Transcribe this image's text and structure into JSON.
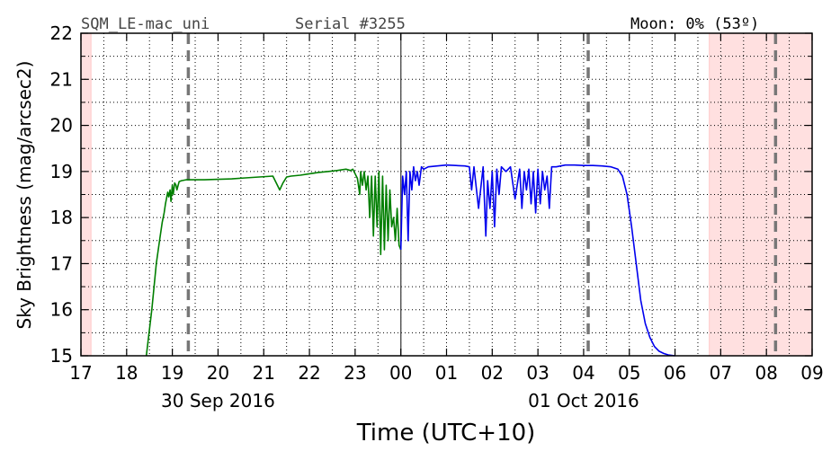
{
  "header": {
    "device": "SQM_LE-mac_uni",
    "serial": "Serial #3255",
    "moon": "Moon: 0% (53º)"
  },
  "chart_data": {
    "type": "line",
    "xlabel": "Time (UTC+10)",
    "ylabel": "Sky Brightness (mag/arcsec2)",
    "xlim": [
      17,
      33
    ],
    "ylim": [
      15,
      22
    ],
    "x_tick_values": [
      17,
      18,
      19,
      20,
      21,
      22,
      23,
      24,
      25,
      26,
      27,
      28,
      29,
      30,
      31,
      32,
      33
    ],
    "x_tick_labels": [
      "17",
      "18",
      "19",
      "20",
      "21",
      "22",
      "23",
      "00",
      "01",
      "02",
      "03",
      "04",
      "05",
      "06",
      "07",
      "08",
      "09"
    ],
    "y_tick_values": [
      15,
      16,
      17,
      18,
      19,
      20,
      21,
      22
    ],
    "y_tick_labels": [
      "15",
      "16",
      "17",
      "18",
      "19",
      "20",
      "21",
      "22"
    ],
    "date_labels": [
      {
        "x": 20,
        "text": "30 Sep 2016"
      },
      {
        "x": 28,
        "text": "01 Oct 2016"
      }
    ],
    "grid": true,
    "midnight_line": 24,
    "dashed_lines": [
      19.35,
      28.1,
      32.2
    ],
    "shaded_regions": [
      {
        "x0": 17,
        "x1": 17.22,
        "color": "#ffe0e0"
      },
      {
        "x0": 30.75,
        "x1": 33,
        "color": "#ffe0e0"
      }
    ],
    "series": [
      {
        "color": "#007f00",
        "x": [
          18.43,
          18.55,
          18.65,
          18.72,
          18.78,
          18.82,
          18.85,
          18.87,
          18.9,
          18.92,
          18.95,
          18.97,
          19.0,
          19.02,
          19.05,
          19.08,
          19.1,
          19.15,
          19.2,
          19.3,
          19.5,
          19.7,
          20.0,
          20.3,
          20.6,
          20.9,
          21.2,
          21.35,
          21.42,
          21.5,
          21.6,
          21.8,
          22.0,
          22.2,
          22.4,
          22.6,
          22.8,
          22.9,
          22.95,
          23.05,
          23.1,
          23.12,
          23.16,
          23.2,
          23.24,
          23.28,
          23.32,
          23.36,
          23.4,
          23.44,
          23.48,
          23.52,
          23.56,
          23.6,
          23.64,
          23.68,
          23.72,
          23.76,
          23.8,
          23.84,
          23.88,
          23.92,
          23.96,
          24.0
        ],
        "y": [
          15.0,
          16.0,
          17.0,
          17.5,
          17.9,
          18.1,
          18.3,
          18.4,
          18.55,
          18.45,
          18.6,
          18.35,
          18.7,
          18.5,
          18.75,
          18.7,
          18.6,
          18.78,
          18.8,
          18.82,
          18.82,
          18.82,
          18.83,
          18.84,
          18.86,
          18.88,
          18.9,
          18.6,
          18.75,
          18.88,
          18.9,
          18.92,
          18.95,
          18.98,
          19.0,
          19.02,
          19.05,
          19.02,
          19.05,
          18.85,
          18.5,
          19.0,
          18.7,
          19.0,
          18.6,
          18.9,
          18.0,
          18.9,
          17.6,
          18.9,
          17.8,
          19.0,
          17.2,
          18.9,
          17.3,
          18.7,
          17.5,
          18.6,
          17.8,
          18.0,
          17.5,
          18.2,
          17.4,
          17.3
        ]
      },
      {
        "color": "#0000ee",
        "x": [
          24.0,
          24.04,
          24.08,
          24.12,
          24.16,
          24.2,
          24.24,
          24.28,
          24.32,
          24.36,
          24.4,
          24.45,
          24.5,
          24.6,
          24.8,
          25.0,
          25.2,
          25.4,
          25.5,
          25.55,
          25.6,
          25.7,
          25.8,
          25.86,
          25.9,
          25.95,
          26.0,
          26.05,
          26.1,
          26.15,
          26.2,
          26.3,
          26.4,
          26.5,
          26.6,
          26.65,
          26.7,
          26.75,
          26.8,
          26.85,
          26.9,
          26.95,
          27.0,
          27.05,
          27.1,
          27.15,
          27.2,
          27.25,
          27.3,
          27.4,
          27.6,
          27.8,
          28.0,
          28.2,
          28.4,
          28.6,
          28.75,
          28.85,
          28.95,
          29.05,
          29.15,
          29.25,
          29.35,
          29.45,
          29.55,
          29.65,
          29.75,
          29.85,
          30.0
        ],
        "y": [
          17.3,
          18.9,
          18.5,
          19.0,
          17.5,
          19.0,
          18.6,
          19.1,
          18.8,
          19.0,
          18.7,
          19.1,
          19.05,
          19.1,
          19.12,
          19.14,
          19.13,
          19.12,
          19.1,
          18.6,
          19.1,
          18.2,
          19.1,
          17.6,
          18.8,
          18.2,
          19.0,
          17.8,
          19.05,
          18.5,
          19.1,
          19.0,
          19.1,
          18.4,
          19.05,
          18.2,
          19.0,
          18.6,
          19.05,
          18.3,
          19.0,
          18.1,
          19.05,
          18.3,
          19.0,
          18.6,
          18.9,
          18.2,
          19.1,
          19.1,
          19.14,
          19.14,
          19.13,
          19.13,
          19.12,
          19.1,
          19.05,
          18.9,
          18.5,
          17.8,
          17.0,
          16.2,
          15.7,
          15.4,
          15.2,
          15.1,
          15.05,
          15.02,
          15.0
        ]
      }
    ]
  }
}
